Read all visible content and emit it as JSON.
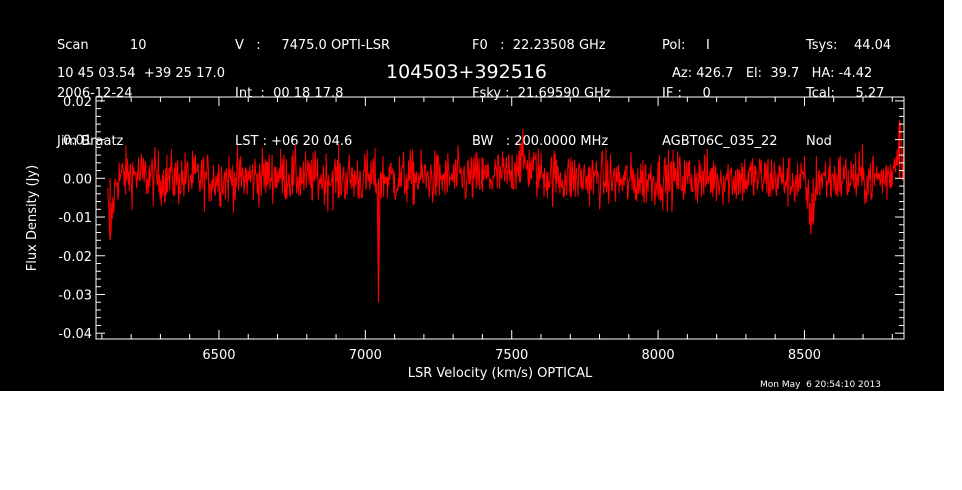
{
  "header": {
    "col1": [
      "Scan          10",
      "2006-12-24",
      "Jim Braatz"
    ],
    "col2": [
      "V   :     7475.0 OPTI-LSR",
      "Int  :  00 18 17.8",
      "LST : +06 20 04.6"
    ],
    "col3": [
      "F0   :  22.23508 GHz",
      "Fsky :  21.69590 GHz",
      "BW   : 200.0000 MHz"
    ],
    "col4": [
      "Pol:     I",
      "IF :     0",
      "AGBT06C_035_22"
    ],
    "col5": [
      "Tsys:    44.04",
      "Tcal:     5.27",
      "Nod"
    ]
  },
  "coords": "10 45 03.54  +39 25 17.0",
  "source": "104503+392516",
  "azel": "Az: 426.7   El:  39.7   HA: -4.42",
  "timestamp": "Mon May  6 20:54:10 2013",
  "colors": {
    "background": "#000000",
    "axes": "#ffffff",
    "series": "#ff0000"
  },
  "chart_data": {
    "type": "line",
    "title": "104503+392516",
    "xlabel": "LSR Velocity (km/s) OPTICAL",
    "ylabel": "Flux Density (Jy)",
    "xlim": [
      6080,
      8840
    ],
    "ylim": [
      -0.0415,
      0.021
    ],
    "xticks": [
      6500,
      7000,
      7500,
      8000,
      8500
    ],
    "yticks": [
      -0.04,
      -0.03,
      -0.02,
      -0.01,
      0.0,
      0.01,
      0.02
    ],
    "ytick_labels": [
      "-0.04",
      "-0.03",
      "-0.02",
      "-0.01",
      "0.00",
      "0.01",
      "0.02"
    ],
    "series": [
      {
        "x": [
          6120,
          6128,
          6135,
          6150,
          6200,
          6300,
          6400,
          6500,
          6600,
          6700,
          6800,
          6900,
          7000,
          7040,
          7045,
          7050,
          7100,
          7200,
          7300,
          7400,
          7500,
          7520,
          7600,
          7700,
          7800,
          7900,
          8000,
          8100,
          8200,
          8300,
          8400,
          8500,
          8530,
          8535,
          8540,
          8600,
          8700,
          8780,
          8800,
          8815,
          8825,
          8835,
          8840
        ],
        "y": [
          -0.006,
          -0.016,
          -0.009,
          0.0,
          0.001,
          0.0,
          0.0,
          0.0,
          0.0,
          0.001,
          0.0,
          0.0,
          0.0,
          0.0,
          -0.032,
          0.0,
          0.0,
          0.0,
          0.0,
          0.0,
          0.001,
          0.005,
          0.001,
          0.0,
          0.0,
          -0.001,
          0.0,
          0.0,
          0.0,
          0.0,
          0.0,
          -0.001,
          -0.012,
          -0.005,
          0.0,
          0.0,
          0.0,
          0.0,
          0.002,
          0.006,
          0.015,
          0.004,
          0.002
        ]
      }
    ],
    "noise_rms": 0.0035,
    "grid": false
  }
}
